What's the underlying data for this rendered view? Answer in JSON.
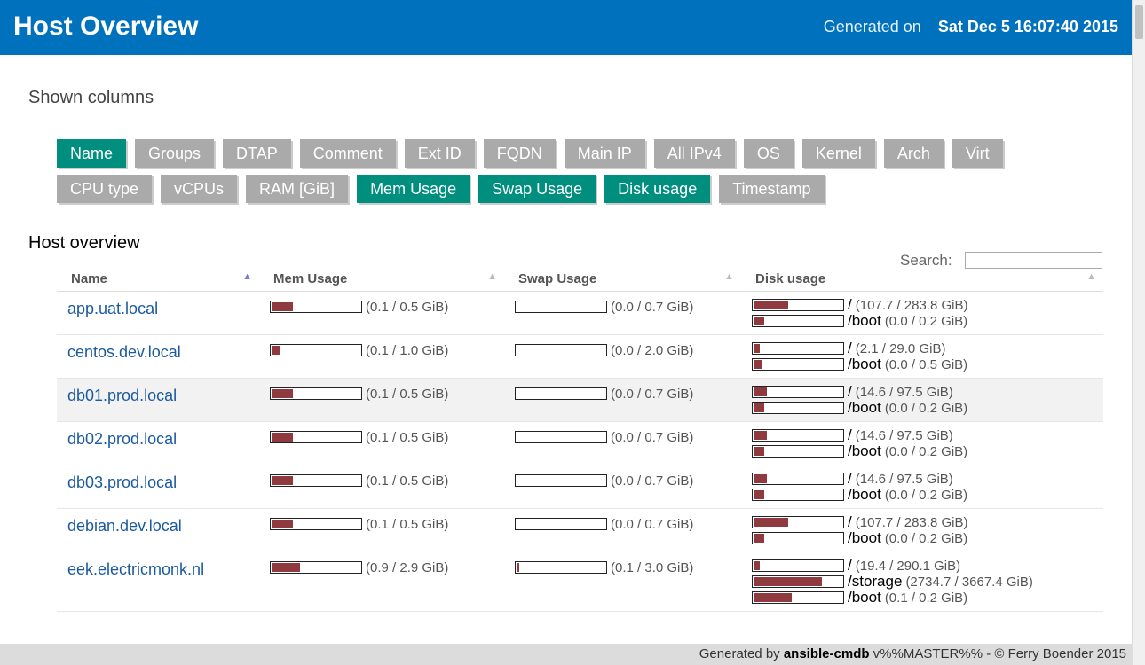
{
  "header": {
    "title": "Host Overview",
    "generated_label": "Generated on",
    "generated_date": "Sat Dec 5 16:07:40 2015"
  },
  "shown_columns": {
    "title": "Shown columns",
    "buttons": [
      {
        "label": "Name",
        "on": true
      },
      {
        "label": "Groups",
        "on": false
      },
      {
        "label": "DTAP",
        "on": false
      },
      {
        "label": "Comment",
        "on": false
      },
      {
        "label": "Ext ID",
        "on": false
      },
      {
        "label": "FQDN",
        "on": false
      },
      {
        "label": "Main IP",
        "on": false
      },
      {
        "label": "All IPv4",
        "on": false
      },
      {
        "label": "OS",
        "on": false
      },
      {
        "label": "Kernel",
        "on": false
      },
      {
        "label": "Arch",
        "on": false
      },
      {
        "label": "Virt",
        "on": false
      },
      {
        "label": "CPU type",
        "on": false
      },
      {
        "label": "vCPUs",
        "on": false
      },
      {
        "label": "RAM [GiB]",
        "on": false
      },
      {
        "label": "Mem Usage",
        "on": true
      },
      {
        "label": "Swap Usage",
        "on": true
      },
      {
        "label": "Disk usage",
        "on": true
      },
      {
        "label": "Timestamp",
        "on": false
      }
    ]
  },
  "overview": {
    "title": "Host overview",
    "search_label": "Search:",
    "search_value": "",
    "columns": [
      "Name",
      "Mem Usage",
      "Swap Usage",
      "Disk usage"
    ],
    "hosts": [
      {
        "name": "app.uat.local",
        "mem": "(0.1 / 0.5 GiB)",
        "mem_frac": 0.24,
        "swap": "(0.0 / 0.7 GiB)",
        "swap_frac": 0,
        "disks": [
          {
            "mount": "/",
            "stat": "(107.7 / 283.8 GiB)",
            "frac": 0.38
          },
          {
            "mount": "/boot",
            "stat": "(0.0 / 0.2 GiB)",
            "frac": 0.12
          }
        ]
      },
      {
        "name": "centos.dev.local",
        "mem": "(0.1 / 1.0 GiB)",
        "mem_frac": 0.1,
        "swap": "(0.0 / 2.0 GiB)",
        "swap_frac": 0,
        "disks": [
          {
            "mount": "/",
            "stat": "(2.1 / 29.0 GiB)",
            "frac": 0.07
          },
          {
            "mount": "/boot",
            "stat": "(0.0 / 0.5 GiB)",
            "frac": 0.1
          }
        ]
      },
      {
        "name": "db01.prod.local",
        "mem": "(0.1 / 0.5 GiB)",
        "mem_frac": 0.24,
        "swap": "(0.0 / 0.7 GiB)",
        "swap_frac": 0,
        "disks": [
          {
            "mount": "/",
            "stat": "(14.6 / 97.5 GiB)",
            "frac": 0.15
          },
          {
            "mount": "/boot",
            "stat": "(0.0 / 0.2 GiB)",
            "frac": 0.12
          }
        ]
      },
      {
        "name": "db02.prod.local",
        "mem": "(0.1 / 0.5 GiB)",
        "mem_frac": 0.24,
        "swap": "(0.0 / 0.7 GiB)",
        "swap_frac": 0,
        "disks": [
          {
            "mount": "/",
            "stat": "(14.6 / 97.5 GiB)",
            "frac": 0.15
          },
          {
            "mount": "/boot",
            "stat": "(0.0 / 0.2 GiB)",
            "frac": 0.12
          }
        ]
      },
      {
        "name": "db03.prod.local",
        "mem": "(0.1 / 0.5 GiB)",
        "mem_frac": 0.24,
        "swap": "(0.0 / 0.7 GiB)",
        "swap_frac": 0,
        "disks": [
          {
            "mount": "/",
            "stat": "(14.6 / 97.5 GiB)",
            "frac": 0.15
          },
          {
            "mount": "/boot",
            "stat": "(0.0 / 0.2 GiB)",
            "frac": 0.12
          }
        ]
      },
      {
        "name": "debian.dev.local",
        "mem": "(0.1 / 0.5 GiB)",
        "mem_frac": 0.24,
        "swap": "(0.0 / 0.7 GiB)",
        "swap_frac": 0,
        "disks": [
          {
            "mount": "/",
            "stat": "(107.7 / 283.8 GiB)",
            "frac": 0.38
          },
          {
            "mount": "/boot",
            "stat": "(0.0 / 0.2 GiB)",
            "frac": 0.12
          }
        ]
      },
      {
        "name": "eek.electricmonk.nl",
        "mem": "(0.9 / 2.9 GiB)",
        "mem_frac": 0.31,
        "swap": "(0.1 / 3.0 GiB)",
        "swap_frac": 0.03,
        "disks": [
          {
            "mount": "/",
            "stat": "(19.4 / 290.1 GiB)",
            "frac": 0.07
          },
          {
            "mount": "/storage",
            "stat": "(2734.7 / 3667.4 GiB)",
            "frac": 0.75
          },
          {
            "mount": "/boot",
            "stat": "(0.1 / 0.2 GiB)",
            "frac": 0.42
          }
        ]
      }
    ]
  },
  "footer": {
    "prefix": "Generated by ",
    "app": "ansible-cmdb",
    "suffix": " v%%MASTER%% - © Ferry Boender 2015"
  }
}
